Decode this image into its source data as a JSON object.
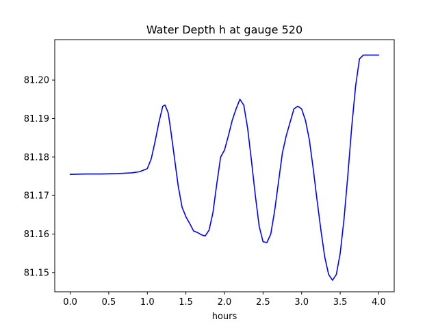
{
  "chart_data": {
    "type": "line",
    "title": "Water Depth h at gauge 520",
    "xlabel": "hours",
    "ylabel": "",
    "xlim": [
      -0.2,
      4.2
    ],
    "ylim": [
      81.145,
      81.2105
    ],
    "xticks": [
      0.0,
      0.5,
      1.0,
      1.5,
      2.0,
      2.5,
      3.0,
      3.5,
      4.0
    ],
    "xtick_labels": [
      "0.0",
      "0.5",
      "1.0",
      "1.5",
      "2.0",
      "2.5",
      "3.0",
      "3.5",
      "4.0"
    ],
    "yticks": [
      81.15,
      81.16,
      81.17,
      81.18,
      81.19,
      81.2
    ],
    "ytick_labels": [
      "81.15",
      "81.16",
      "81.17",
      "81.18",
      "81.19",
      "81.20"
    ],
    "grid": false,
    "series": [
      {
        "color": "#0000ff",
        "x": [
          0.0,
          0.2,
          0.4,
          0.6,
          0.8,
          0.9,
          1.0,
          1.05,
          1.1,
          1.15,
          1.2,
          1.23,
          1.27,
          1.3,
          1.35,
          1.4,
          1.45,
          1.5,
          1.55,
          1.6,
          1.65,
          1.7,
          1.75,
          1.8,
          1.85,
          1.9,
          1.95,
          2.0,
          2.05,
          2.1,
          2.15,
          2.2,
          2.25,
          2.3,
          2.35,
          2.4,
          2.45,
          2.5,
          2.55,
          2.6,
          2.65,
          2.7,
          2.75,
          2.8,
          2.85,
          2.9,
          2.95,
          3.0,
          3.05,
          3.1,
          3.15,
          3.2,
          3.25,
          3.3,
          3.35,
          3.4,
          3.45,
          3.5,
          3.55,
          3.6,
          3.65,
          3.7,
          3.75,
          3.8,
          3.85,
          3.9,
          3.95,
          4.0
        ],
        "y": [
          81.1755,
          81.1756,
          81.1756,
          81.1757,
          81.1759,
          81.1762,
          81.177,
          81.1795,
          81.184,
          81.189,
          81.1932,
          81.1935,
          81.1915,
          81.1875,
          81.18,
          81.1725,
          81.167,
          81.1645,
          81.1627,
          81.1608,
          81.1604,
          81.1598,
          81.1595,
          81.161,
          81.1655,
          81.173,
          81.18,
          81.1818,
          81.1855,
          81.1895,
          81.1925,
          81.195,
          81.1935,
          81.1875,
          81.179,
          81.17,
          81.162,
          81.158,
          81.1578,
          81.16,
          81.166,
          81.1735,
          81.181,
          81.1855,
          81.189,
          81.1925,
          81.1932,
          81.1925,
          81.1895,
          81.1845,
          81.177,
          81.1688,
          81.161,
          81.154,
          81.1495,
          81.148,
          81.1495,
          81.155,
          81.164,
          81.1755,
          81.188,
          81.1985,
          81.2055,
          81.2065,
          81.2065,
          81.2065,
          81.2065,
          81.2065
        ]
      }
    ]
  }
}
